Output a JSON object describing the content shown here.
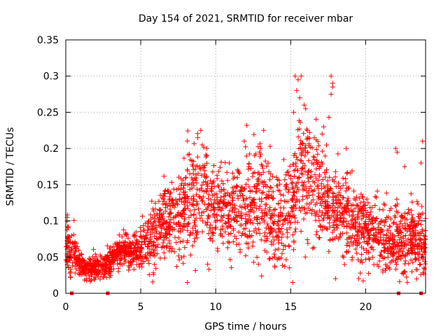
{
  "chart_data": {
    "type": "scatter",
    "title": "Day 154 of 2021, SRMTID for receiver mbar",
    "xlabel": "GPS time / hours",
    "ylabel": "SRMTID / TECUs",
    "xlim": [
      0,
      24
    ],
    "ylim": [
      0,
      0.35
    ],
    "xticks": [
      0,
      5,
      10,
      15,
      20
    ],
    "xtick_labels": [
      "0",
      "5",
      "10",
      "15",
      "20"
    ],
    "yticks": [
      0,
      0.05,
      0.1,
      0.15,
      0.2,
      0.25,
      0.3,
      0.35
    ],
    "ytick_labels": [
      "0",
      "0.05",
      "0.1",
      "0.15",
      "0.2",
      "0.25",
      "0.3",
      "0.35"
    ],
    "grid": true,
    "marker": "+",
    "color": "#ff0000",
    "gap_markers_x": [
      0.4,
      2.8,
      22.2,
      23.7
    ],
    "profile": {
      "x": [
        0,
        0.5,
        1,
        1.5,
        2,
        2.5,
        3,
        3.5,
        4,
        4.5,
        5,
        5.5,
        6,
        6.5,
        7,
        7.5,
        8,
        8.5,
        9,
        9.5,
        10,
        10.5,
        11,
        11.5,
        12,
        12.5,
        13,
        13.5,
        14,
        14.5,
        15,
        15.5,
        16,
        16.5,
        17,
        17.5,
        18,
        18.5,
        19,
        19.5,
        20,
        20.5,
        21,
        21.5,
        22,
        22.5,
        23,
        23.5,
        24
      ],
      "center": [
        0.07,
        0.055,
        0.04,
        0.035,
        0.035,
        0.038,
        0.045,
        0.055,
        0.06,
        0.058,
        0.06,
        0.075,
        0.085,
        0.095,
        0.1,
        0.105,
        0.12,
        0.13,
        0.14,
        0.135,
        0.12,
        0.115,
        0.11,
        0.115,
        0.12,
        0.125,
        0.13,
        0.12,
        0.1,
        0.1,
        0.12,
        0.16,
        0.17,
        0.15,
        0.14,
        0.13,
        0.12,
        0.11,
        0.1,
        0.095,
        0.085,
        0.08,
        0.075,
        0.07,
        0.075,
        0.07,
        0.075,
        0.07,
        0.07
      ],
      "spread": [
        0.03,
        0.02,
        0.012,
        0.01,
        0.01,
        0.012,
        0.015,
        0.015,
        0.015,
        0.015,
        0.02,
        0.03,
        0.035,
        0.035,
        0.035,
        0.035,
        0.04,
        0.045,
        0.045,
        0.04,
        0.035,
        0.035,
        0.035,
        0.04,
        0.045,
        0.045,
        0.05,
        0.045,
        0.04,
        0.04,
        0.05,
        0.06,
        0.06,
        0.05,
        0.045,
        0.04,
        0.04,
        0.035,
        0.035,
        0.035,
        0.03,
        0.03,
        0.03,
        0.03,
        0.03,
        0.03,
        0.035,
        0.035,
        0.035
      ]
    },
    "point_count": 2600,
    "highlights": [
      {
        "x": 15.3,
        "y": 0.3
      },
      {
        "x": 15.5,
        "y": 0.295
      },
      {
        "x": 15.7,
        "y": 0.3
      },
      {
        "x": 15.4,
        "y": 0.28
      },
      {
        "x": 15.6,
        "y": 0.27
      },
      {
        "x": 15.9,
        "y": 0.26
      },
      {
        "x": 16.0,
        "y": 0.255
      },
      {
        "x": 15.2,
        "y": 0.25
      },
      {
        "x": 17.7,
        "y": 0.3
      },
      {
        "x": 17.8,
        "y": 0.29
      },
      {
        "x": 17.7,
        "y": 0.275
      },
      {
        "x": 17.8,
        "y": 0.285
      },
      {
        "x": 17.2,
        "y": 0.23
      },
      {
        "x": 17.1,
        "y": 0.22
      },
      {
        "x": 9.0,
        "y": 0.225
      },
      {
        "x": 8.8,
        "y": 0.215
      },
      {
        "x": 9.4,
        "y": 0.2
      },
      {
        "x": 9.1,
        "y": 0.205
      },
      {
        "x": 13.2,
        "y": 0.225
      },
      {
        "x": 13.0,
        "y": 0.2
      },
      {
        "x": 10.9,
        "y": 0.18
      },
      {
        "x": 11.9,
        "y": 0.21
      },
      {
        "x": 18.7,
        "y": 0.2
      },
      {
        "x": 22.0,
        "y": 0.2
      },
      {
        "x": 22.1,
        "y": 0.195
      },
      {
        "x": 23.8,
        "y": 0.21
      },
      {
        "x": 23.7,
        "y": 0.18
      },
      {
        "x": 22.6,
        "y": 0.175
      },
      {
        "x": 0.3,
        "y": 0.022
      },
      {
        "x": 1.7,
        "y": 0.018
      },
      {
        "x": 23.4,
        "y": 0.02
      },
      {
        "x": 0.1,
        "y": 0.105
      }
    ]
  }
}
